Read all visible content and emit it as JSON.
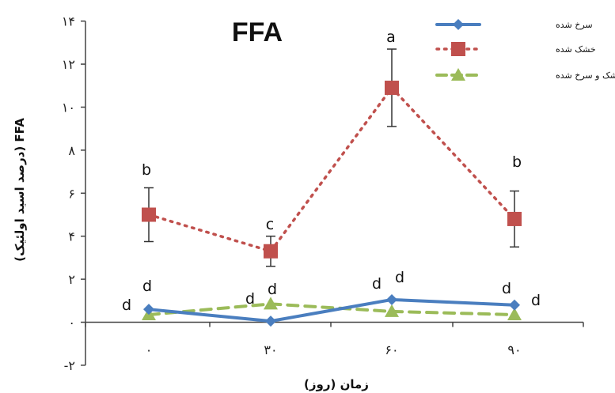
{
  "chart_data": {
    "type": "line",
    "title": "FFA",
    "xlabel": "زمان (روز)",
    "ylabel": "FFA (درصد اسید اولئیک)",
    "x": [
      0,
      30,
      60,
      90
    ],
    "x_tick_labels": [
      "۰",
      "۳۰",
      "۶۰",
      "۹۰"
    ],
    "ylim": [
      -2,
      14
    ],
    "y_ticks": [
      -2,
      0,
      2,
      4,
      6,
      8,
      10,
      12,
      14
    ],
    "y_tick_labels": [
      "-۲",
      "۰",
      "۲",
      "۴",
      "۶",
      "۸",
      "۱۰",
      "۱۲",
      "۱۴"
    ],
    "legend_position": "top-right",
    "grid": false,
    "series": [
      {
        "name": "سرخ شده",
        "color": "#4a7ebf",
        "line_style": "solid",
        "marker": "diamond",
        "values": [
          0.6,
          0.05,
          1.05,
          0.8
        ],
        "letters": [
          "d",
          "d",
          "d",
          "d"
        ]
      },
      {
        "name": "خشک شده",
        "color": "#c0504d",
        "line_style": "dotted",
        "marker": "square",
        "values": [
          5.0,
          3.3,
          10.9,
          4.8
        ],
        "error": [
          1.25,
          0.7,
          1.8,
          1.3
        ],
        "letters": [
          "b",
          "c",
          "a",
          "b"
        ]
      },
      {
        "name": "خشک و سرخ شده",
        "color": "#9bbb59",
        "line_style": "dashed",
        "marker": "triangle",
        "values": [
          0.35,
          0.85,
          0.5,
          0.35
        ],
        "letters": [
          "d",
          "d",
          "d",
          "d"
        ]
      }
    ]
  }
}
